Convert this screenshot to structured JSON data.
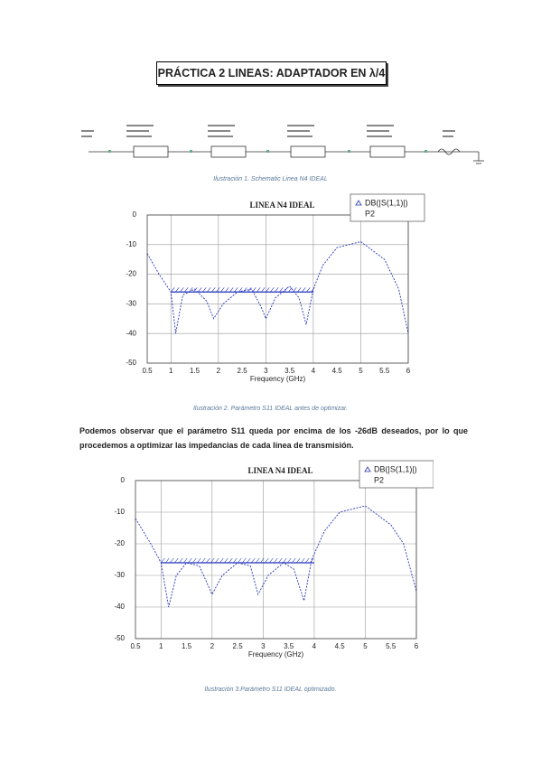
{
  "title": "PRÁCTICA 2 LINEAS: ADAPTADOR EN λ/4",
  "captions": [
    "Ilustración 1. Schematic Linea N4 IDEAL",
    "Ilustración 2. Parámetro S11 IDEAL antes de optimizar.",
    "Ilustración 3.Parámetro S11 IDEAL optimizado."
  ],
  "paragraph": [
    "Podemos observar que el parámetro S11 queda por encima de los -26dB deseados, por lo que",
    "procedemos a optimizar las impedancias de cada línea de transmisión."
  ],
  "chart_data": [
    {
      "type": "line",
      "title": "LINEA N4 IDEAL",
      "x_label": "Frequency (GHz)",
      "x": [
        0.5,
        0.75,
        1,
        1.1,
        1.25,
        1.5,
        1.75,
        1.9,
        2.1,
        2.4,
        2.7,
        2.9,
        3,
        3.2,
        3.5,
        3.7,
        3.85,
        4,
        4.2,
        4.5,
        5,
        5.5,
        5.8,
        6
      ],
      "series": [
        {
          "name": "DB(|S(1,1)|)",
          "subname": "P2",
          "color": "#2233bb",
          "values": [
            -13,
            -20,
            -26,
            -40,
            -27,
            -25,
            -29,
            -35,
            -30,
            -26,
            -25,
            -31,
            -35,
            -28,
            -24,
            -28,
            -37,
            -25,
            -17,
            -11,
            -9,
            -15,
            -25,
            -40
          ]
        }
      ],
      "goal": {
        "x": [
          1,
          4
        ],
        "value": -26
      },
      "xlim": [
        0.5,
        6
      ],
      "xticks": [
        0.5,
        1,
        1.5,
        2,
        2.5,
        3,
        3.5,
        4,
        4.5,
        5,
        5.5,
        6
      ],
      "ylim": [
        -50,
        0
      ],
      "yticks": [
        0,
        -10,
        -20,
        -30,
        -40,
        -50
      ],
      "grid": true
    },
    {
      "type": "line",
      "title": "LINEA N4 IDEAL",
      "x_label": "Frequency (GHz)",
      "x": [
        0.5,
        0.8,
        1,
        1.15,
        1.3,
        1.5,
        1.75,
        2,
        2.2,
        2.5,
        2.75,
        2.9,
        3.1,
        3.4,
        3.6,
        3.8,
        3.95,
        4.2,
        4.5,
        5,
        5.5,
        5.75,
        6
      ],
      "series": [
        {
          "name": "DB(|S(1,1)|)",
          "subname": "P2",
          "color": "#2233bb",
          "values": [
            -12,
            -20,
            -26,
            -40,
            -30,
            -26,
            -27,
            -36,
            -30,
            -26,
            -27,
            -36,
            -30,
            -26,
            -28,
            -38,
            -25,
            -16,
            -10,
            -8,
            -14,
            -20,
            -35
          ]
        }
      ],
      "goal": {
        "x": [
          1,
          4
        ],
        "value": -26
      },
      "xlim": [
        0.5,
        6
      ],
      "xticks": [
        0.5,
        1,
        1.5,
        2,
        2.5,
        3,
        3.5,
        4,
        4.5,
        5,
        5.5,
        6
      ],
      "ylim": [
        -50,
        0
      ],
      "yticks": [
        0,
        -10,
        -20,
        -30,
        -40,
        -50
      ],
      "grid": true
    }
  ]
}
